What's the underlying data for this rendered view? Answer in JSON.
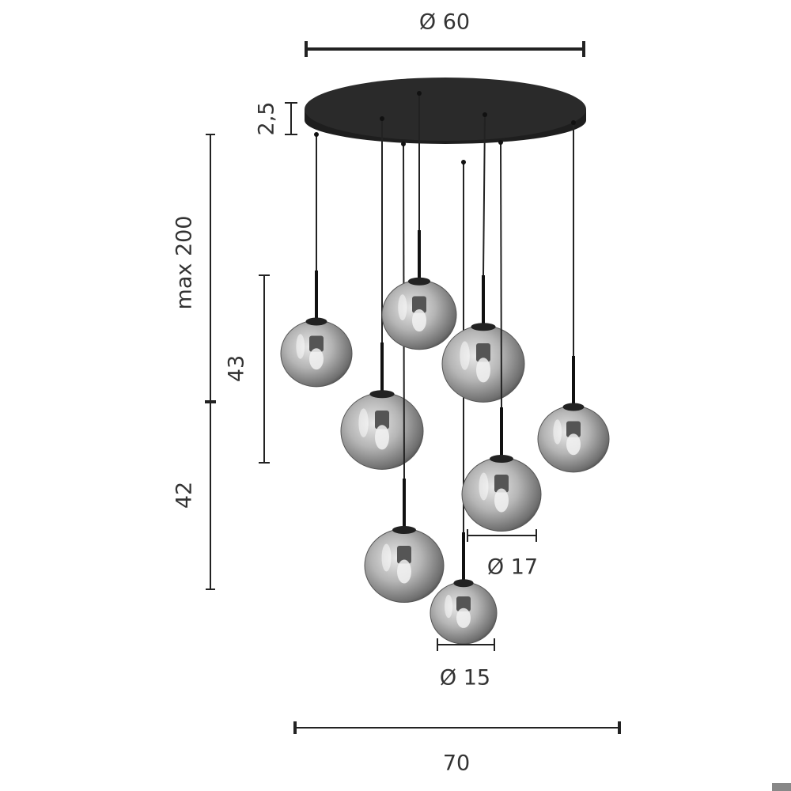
{
  "dimensions": {
    "canopy_diameter": "Ø 60",
    "canopy_height": "2,5",
    "max_height": "max 200",
    "upper_drop": "43",
    "lower_drop": "42",
    "large_globe": "Ø 17",
    "small_globe": "Ø 15",
    "total_width": "70"
  }
}
